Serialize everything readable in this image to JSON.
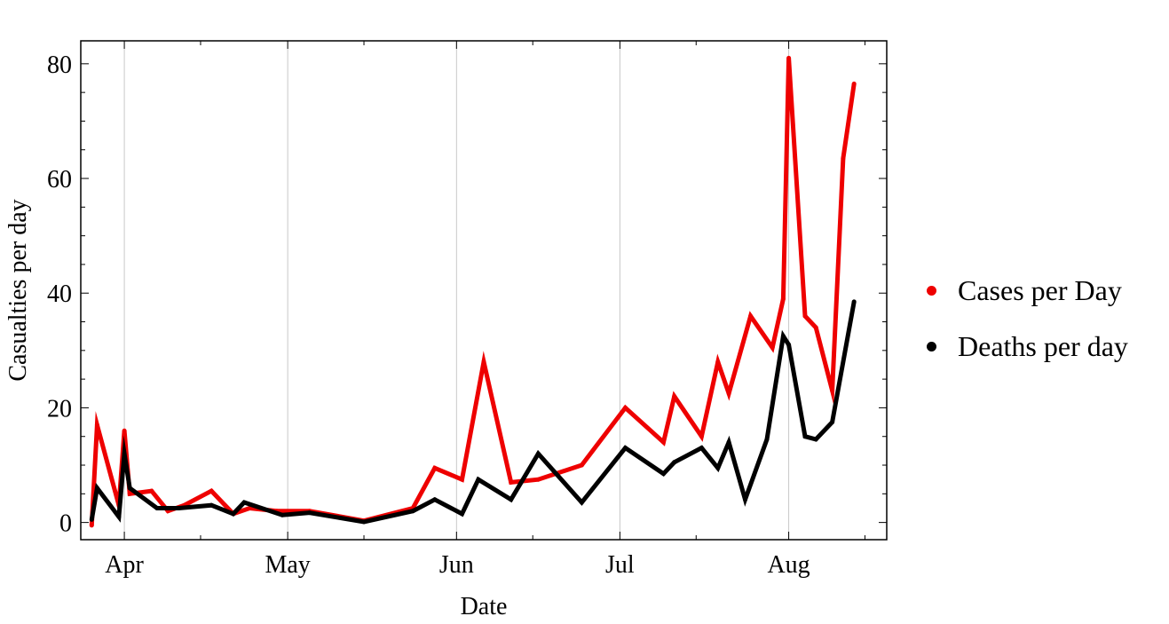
{
  "chart_data": {
    "type": "line",
    "xlabel": "Date",
    "ylabel": "Casualties per day",
    "x_tick_labels": [
      "Apr",
      "May",
      "Jun",
      "Jul",
      "Aug"
    ],
    "x_tick_dates": [
      "2020-04-01",
      "2020-05-01",
      "2020-06-01",
      "2020-07-01",
      "2020-08-01"
    ],
    "xlim": [
      "2020-03-24",
      "2020-08-19"
    ],
    "y_ticks": [
      0,
      20,
      40,
      60,
      80
    ],
    "ylim": [
      -3,
      84
    ],
    "grid": "vertical at month ticks",
    "legend_position": "right",
    "series": [
      {
        "name": "Cases per Day",
        "color": "#ee0000",
        "points": [
          [
            "2020-03-26",
            -0.5
          ],
          [
            "2020-03-27",
            17
          ],
          [
            "2020-03-31",
            3
          ],
          [
            "2020-04-01",
            16
          ],
          [
            "2020-04-02",
            5
          ],
          [
            "2020-04-06",
            5.5
          ],
          [
            "2020-04-09",
            2
          ],
          [
            "2020-04-12",
            3
          ],
          [
            "2020-04-17",
            5.5
          ],
          [
            "2020-04-21",
            1.5
          ],
          [
            "2020-04-24",
            2.5
          ],
          [
            "2020-04-29",
            2
          ],
          [
            "2020-05-05",
            2
          ],
          [
            "2020-05-15",
            0.3
          ],
          [
            "2020-05-24",
            2.5
          ],
          [
            "2020-05-28",
            9.5
          ],
          [
            "2020-06-02",
            7.5
          ],
          [
            "2020-06-06",
            28
          ],
          [
            "2020-06-11",
            7
          ],
          [
            "2020-06-16",
            7.5
          ],
          [
            "2020-06-24",
            10
          ],
          [
            "2020-07-02",
            20
          ],
          [
            "2020-07-09",
            14
          ],
          [
            "2020-07-11",
            22
          ],
          [
            "2020-07-16",
            15
          ],
          [
            "2020-07-19",
            28
          ],
          [
            "2020-07-21",
            22.5
          ],
          [
            "2020-07-25",
            36
          ],
          [
            "2020-07-29",
            30.5
          ],
          [
            "2020-07-31",
            39
          ],
          [
            "2020-08-01",
            81
          ],
          [
            "2020-08-04",
            36
          ],
          [
            "2020-08-06",
            34
          ],
          [
            "2020-08-09",
            23
          ],
          [
            "2020-08-11",
            63.5
          ],
          [
            "2020-08-13",
            76.5
          ]
        ]
      },
      {
        "name": "Deaths per day",
        "color": "#000000",
        "points": [
          [
            "2020-03-26",
            0.5
          ],
          [
            "2020-03-27",
            6
          ],
          [
            "2020-03-31",
            1
          ],
          [
            "2020-04-01",
            12
          ],
          [
            "2020-04-02",
            6
          ],
          [
            "2020-04-07",
            2.5
          ],
          [
            "2020-04-11",
            2.5
          ],
          [
            "2020-04-17",
            3
          ],
          [
            "2020-04-21",
            1.5
          ],
          [
            "2020-04-23",
            3.5
          ],
          [
            "2020-04-30",
            1.3
          ],
          [
            "2020-05-05",
            1.7
          ],
          [
            "2020-05-15",
            0.1
          ],
          [
            "2020-05-24",
            2
          ],
          [
            "2020-05-28",
            4
          ],
          [
            "2020-06-02",
            1.5
          ],
          [
            "2020-06-05",
            7.5
          ],
          [
            "2020-06-11",
            4
          ],
          [
            "2020-06-16",
            12
          ],
          [
            "2020-06-24",
            3.5
          ],
          [
            "2020-07-02",
            13
          ],
          [
            "2020-07-09",
            8.5
          ],
          [
            "2020-07-11",
            10.5
          ],
          [
            "2020-07-16",
            13
          ],
          [
            "2020-07-19",
            9.5
          ],
          [
            "2020-07-21",
            14
          ],
          [
            "2020-07-24",
            4
          ],
          [
            "2020-07-28",
            14.5
          ],
          [
            "2020-07-31",
            32.5
          ],
          [
            "2020-08-01",
            31
          ],
          [
            "2020-08-04",
            15
          ],
          [
            "2020-08-06",
            14.5
          ],
          [
            "2020-08-09",
            17.5
          ],
          [
            "2020-08-13",
            38.5
          ]
        ]
      }
    ]
  }
}
